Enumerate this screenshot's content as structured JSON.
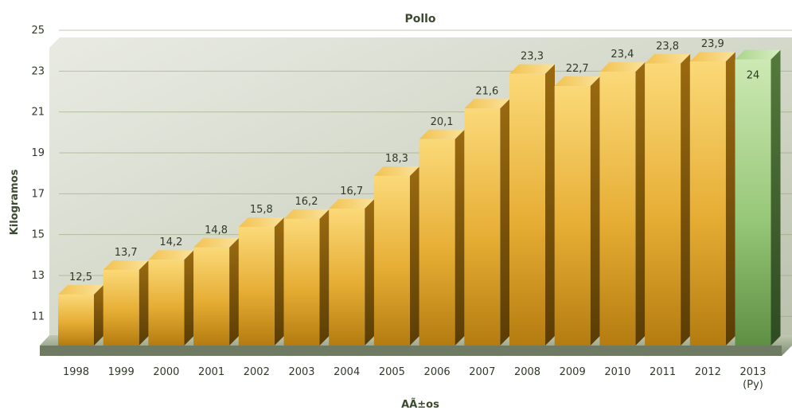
{
  "chart_data": {
    "type": "bar",
    "title": "Pollo",
    "xlabel": "AÃ±os",
    "ylabel": "Kilogramos",
    "categories": [
      "1998",
      "1999",
      "2000",
      "2001",
      "2002",
      "2003",
      "2004",
      "2005",
      "2006",
      "2007",
      "2008",
      "2009",
      "2010",
      "2011",
      "2012",
      "2013\n(Py)"
    ],
    "values": [
      12.5,
      13.7,
      14.2,
      14.8,
      15.8,
      16.2,
      16.7,
      18.3,
      20.1,
      21.6,
      23.3,
      22.7,
      23.4,
      23.8,
      23.9,
      24
    ],
    "value_labels": [
      "12,5",
      "13,7",
      "14,2",
      "14,8",
      "15,8",
      "16,2",
      "16,7",
      "18,3",
      "20,1",
      "21,6",
      "23,3",
      "22,7",
      "23,4",
      "23,8",
      "23,9",
      "24"
    ],
    "projected_index": 15,
    "ylim": [
      10,
      25
    ],
    "yticks": [
      11,
      13,
      15,
      17,
      19,
      21,
      23,
      25
    ],
    "grid": true,
    "colors": {
      "bar": "#e8b43a",
      "bar_projected": "#8fbf6a",
      "gridline": "#8fa070",
      "text": "#2f3a27"
    }
  }
}
